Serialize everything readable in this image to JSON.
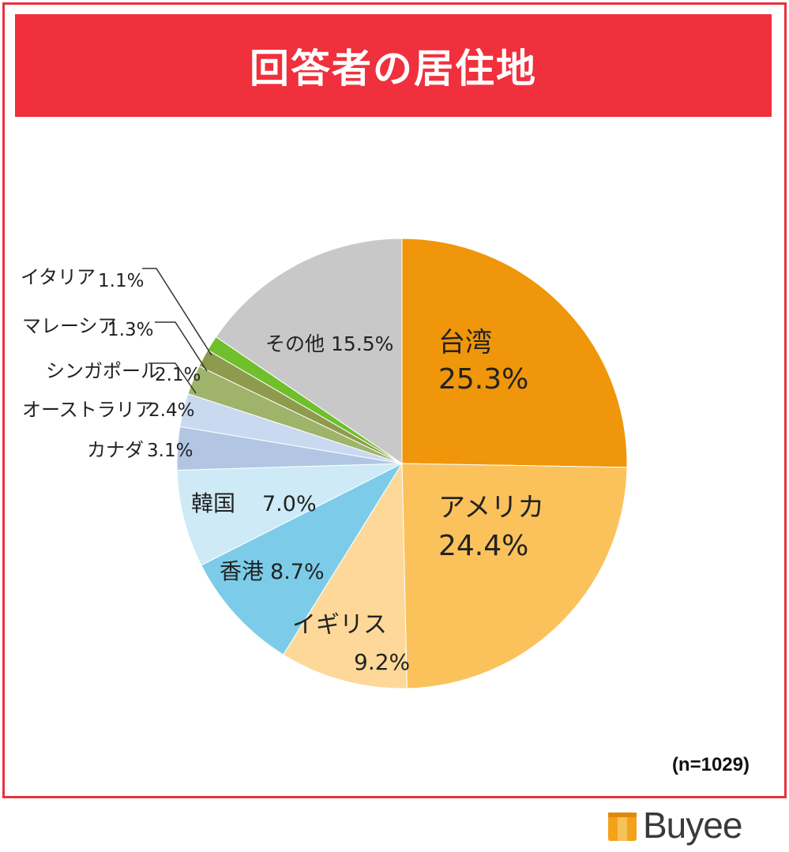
{
  "title": "回答者の居住地",
  "note": "(n=1029)",
  "logo": {
    "text": "Buyee",
    "icon": "box-icon",
    "icon_color": "#f5a21b"
  },
  "colors": {
    "title_bg": "#f0303c",
    "frame": "#e8323c"
  },
  "chart_data": {
    "type": "pie",
    "slices": [
      {
        "label": "台湾",
        "value": 25.3,
        "value_label": "25.3%",
        "color": "#f0960a"
      },
      {
        "label": "アメリカ",
        "value": 24.4,
        "value_label": "24.4%",
        "color": "#fbc25c"
      },
      {
        "label": "イギリス",
        "value": 9.2,
        "value_label": "9.2%",
        "color": "#fdd898"
      },
      {
        "label": "香港",
        "value": 8.7,
        "value_label": "8.7%",
        "color": "#7ccce9"
      },
      {
        "label": "韓国",
        "value": 7.0,
        "value_label": "7.0%",
        "color": "#cdeaf6"
      },
      {
        "label": "カナダ",
        "value": 3.1,
        "value_label": "3.1%",
        "color": "#b2c6e4"
      },
      {
        "label": "オーストラリア",
        "value": 2.4,
        "value_label": "2.4%",
        "color": "#c9d9ef"
      },
      {
        "label": "シンガポール",
        "value": 2.1,
        "value_label": "2.1%",
        "color": "#9fb36a"
      },
      {
        "label": "マレーシア",
        "value": 1.3,
        "value_label": "1.3%",
        "color": "#8e9b4e"
      },
      {
        "label": "イタリア",
        "value": 1.1,
        "value_label": "1.1%",
        "color": "#6fc02c"
      },
      {
        "label": "その他",
        "value": 15.5,
        "value_label": "15.5%",
        "color": "#c8c8c8"
      }
    ],
    "start": "12 o'clock",
    "direction": "clockwise"
  }
}
